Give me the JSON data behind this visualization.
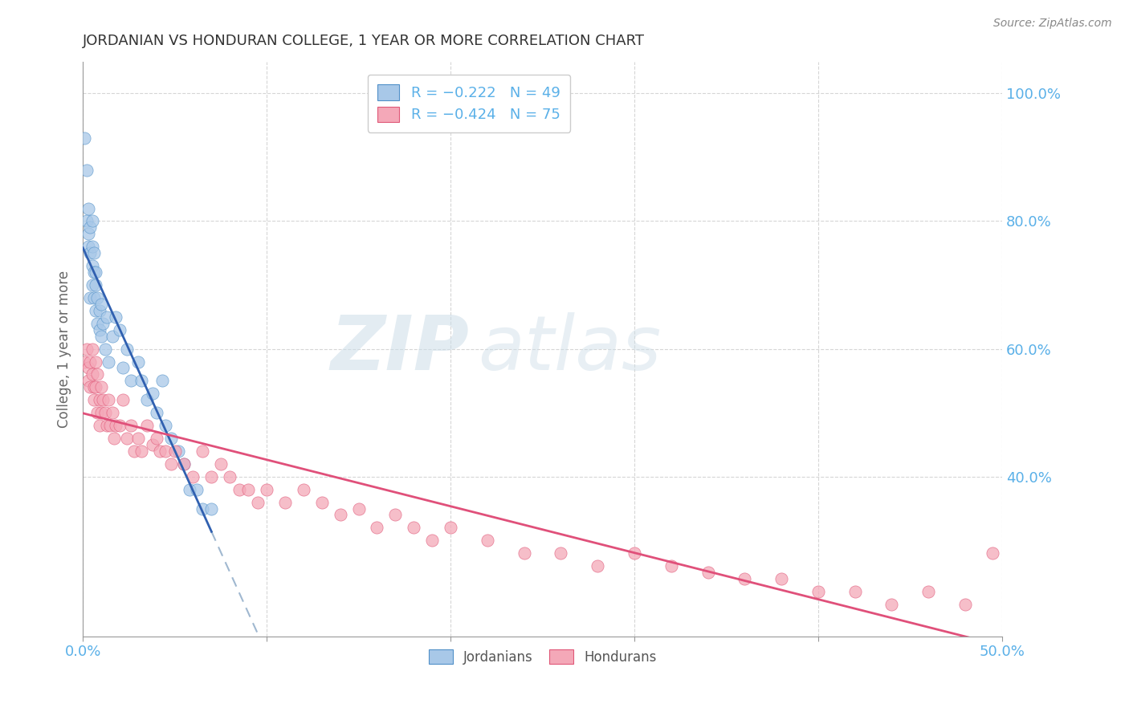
{
  "title": "JORDANIAN VS HONDURAN COLLEGE, 1 YEAR OR MORE CORRELATION CHART",
  "source": "Source: ZipAtlas.com",
  "ylabel": "College, 1 year or more",
  "xlim": [
    0.0,
    0.5
  ],
  "ylim": [
    0.15,
    1.05
  ],
  "xticks": [
    0.0,
    0.1,
    0.2,
    0.3,
    0.4,
    0.5
  ],
  "xticklabels": [
    "0.0%",
    "",
    "",
    "",
    "",
    "50.0%"
  ],
  "yticks_right": [
    0.4,
    0.6,
    0.8,
    1.0
  ],
  "yticks_right_labels": [
    "40.0%",
    "60.0%",
    "80.0%",
    "100.0%"
  ],
  "legend_r1": "R = −0.222   N = 49",
  "legend_r2": "R = −0.424   N = 75",
  "color_jordanian_fill": "#a8c8e8",
  "color_jordanian_edge": "#5090c8",
  "color_honduran_fill": "#f4a8b8",
  "color_honduran_edge": "#e05878",
  "color_jordanian_line": "#3060b0",
  "color_honduran_line": "#e0507a",
  "color_dashed": "#a0b8d0",
  "color_axis_labels": "#5ab0e8",
  "color_title": "#333333",
  "background_color": "#ffffff",
  "grid_color": "#cccccc",
  "jordanian_x": [
    0.001,
    0.002,
    0.002,
    0.003,
    0.003,
    0.003,
    0.004,
    0.004,
    0.004,
    0.005,
    0.005,
    0.005,
    0.005,
    0.006,
    0.006,
    0.006,
    0.007,
    0.007,
    0.007,
    0.008,
    0.008,
    0.009,
    0.009,
    0.01,
    0.01,
    0.011,
    0.012,
    0.013,
    0.014,
    0.016,
    0.018,
    0.02,
    0.022,
    0.024,
    0.026,
    0.03,
    0.032,
    0.035,
    0.038,
    0.04,
    0.043,
    0.045,
    0.048,
    0.052,
    0.055,
    0.058,
    0.062,
    0.065,
    0.07
  ],
  "jordanian_y": [
    0.93,
    0.88,
    0.8,
    0.78,
    0.76,
    0.82,
    0.79,
    0.75,
    0.68,
    0.8,
    0.76,
    0.73,
    0.7,
    0.75,
    0.72,
    0.68,
    0.72,
    0.7,
    0.66,
    0.68,
    0.64,
    0.66,
    0.63,
    0.67,
    0.62,
    0.64,
    0.6,
    0.65,
    0.58,
    0.62,
    0.65,
    0.63,
    0.57,
    0.6,
    0.55,
    0.58,
    0.55,
    0.52,
    0.53,
    0.5,
    0.55,
    0.48,
    0.46,
    0.44,
    0.42,
    0.38,
    0.38,
    0.35,
    0.35
  ],
  "honduran_x": [
    0.001,
    0.002,
    0.003,
    0.003,
    0.004,
    0.004,
    0.005,
    0.005,
    0.006,
    0.006,
    0.007,
    0.007,
    0.008,
    0.008,
    0.009,
    0.009,
    0.01,
    0.01,
    0.011,
    0.012,
    0.013,
    0.014,
    0.015,
    0.016,
    0.017,
    0.018,
    0.02,
    0.022,
    0.024,
    0.026,
    0.028,
    0.03,
    0.032,
    0.035,
    0.038,
    0.04,
    0.042,
    0.045,
    0.048,
    0.05,
    0.055,
    0.06,
    0.065,
    0.07,
    0.075,
    0.08,
    0.085,
    0.09,
    0.095,
    0.1,
    0.11,
    0.12,
    0.13,
    0.14,
    0.15,
    0.16,
    0.17,
    0.18,
    0.19,
    0.2,
    0.22,
    0.24,
    0.26,
    0.28,
    0.3,
    0.32,
    0.34,
    0.36,
    0.38,
    0.4,
    0.42,
    0.44,
    0.46,
    0.48,
    0.495
  ],
  "honduran_y": [
    0.58,
    0.6,
    0.55,
    0.57,
    0.58,
    0.54,
    0.56,
    0.6,
    0.54,
    0.52,
    0.58,
    0.54,
    0.56,
    0.5,
    0.52,
    0.48,
    0.5,
    0.54,
    0.52,
    0.5,
    0.48,
    0.52,
    0.48,
    0.5,
    0.46,
    0.48,
    0.48,
    0.52,
    0.46,
    0.48,
    0.44,
    0.46,
    0.44,
    0.48,
    0.45,
    0.46,
    0.44,
    0.44,
    0.42,
    0.44,
    0.42,
    0.4,
    0.44,
    0.4,
    0.42,
    0.4,
    0.38,
    0.38,
    0.36,
    0.38,
    0.36,
    0.38,
    0.36,
    0.34,
    0.35,
    0.32,
    0.34,
    0.32,
    0.3,
    0.32,
    0.3,
    0.28,
    0.28,
    0.26,
    0.28,
    0.26,
    0.25,
    0.24,
    0.24,
    0.22,
    0.22,
    0.2,
    0.22,
    0.2,
    0.28
  ]
}
